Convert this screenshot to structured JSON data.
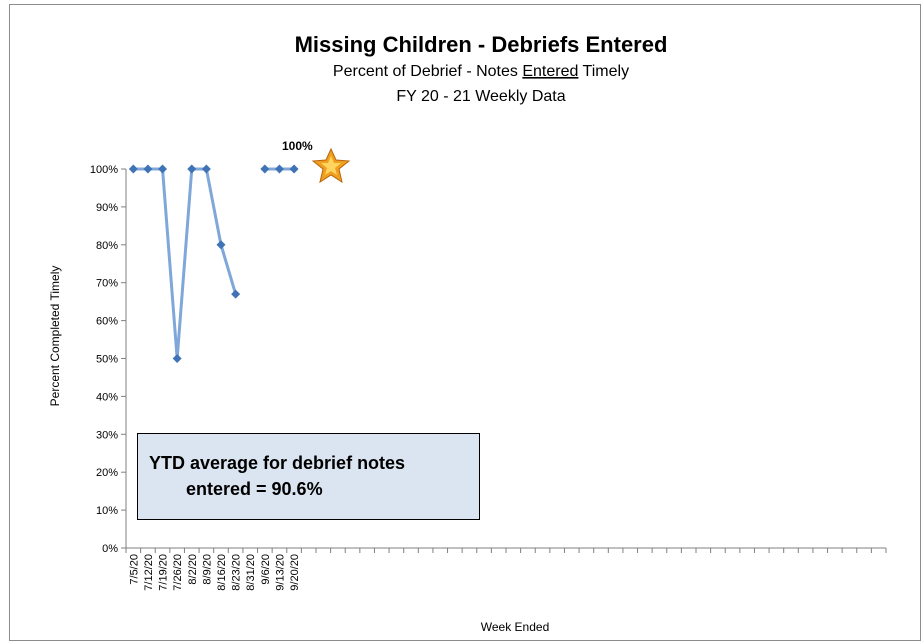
{
  "chart_data": {
    "type": "line",
    "title": "Missing Children - Debriefs Entered",
    "subtitle_parts": [
      "Percent of Debrief - Notes ",
      "Entered",
      " Timely"
    ],
    "subtitle2": "FY 20 - 21  Weekly Data",
    "xlabel": "Week Ended",
    "ylabel": "Percent Completed Timely",
    "ylim": [
      0,
      100
    ],
    "y_ticks": [
      "0%",
      "10%",
      "20%",
      "30%",
      "40%",
      "50%",
      "60%",
      "70%",
      "80%",
      "90%",
      "100%"
    ],
    "categories": [
      "7/5/20",
      "7/12/20",
      "7/19/20",
      "7/26/20",
      "8/2/20",
      "8/9/20",
      "8/16/20",
      "8/23/20",
      "8/31/20",
      "9/6/20",
      "9/13/20",
      "9/20/20"
    ],
    "total_weeks": 52,
    "values": [
      100,
      100,
      100,
      50,
      100,
      100,
      80,
      67,
      null,
      100,
      100,
      100
    ],
    "line_color": "#7fa7d9",
    "marker_color": "#3f73b6",
    "annotations": {
      "peak_label": "100%",
      "ytd_line1": "YTD average for debrief notes",
      "ytd_line2": "entered =  90.6%"
    },
    "grid": false,
    "legend": "none"
  }
}
